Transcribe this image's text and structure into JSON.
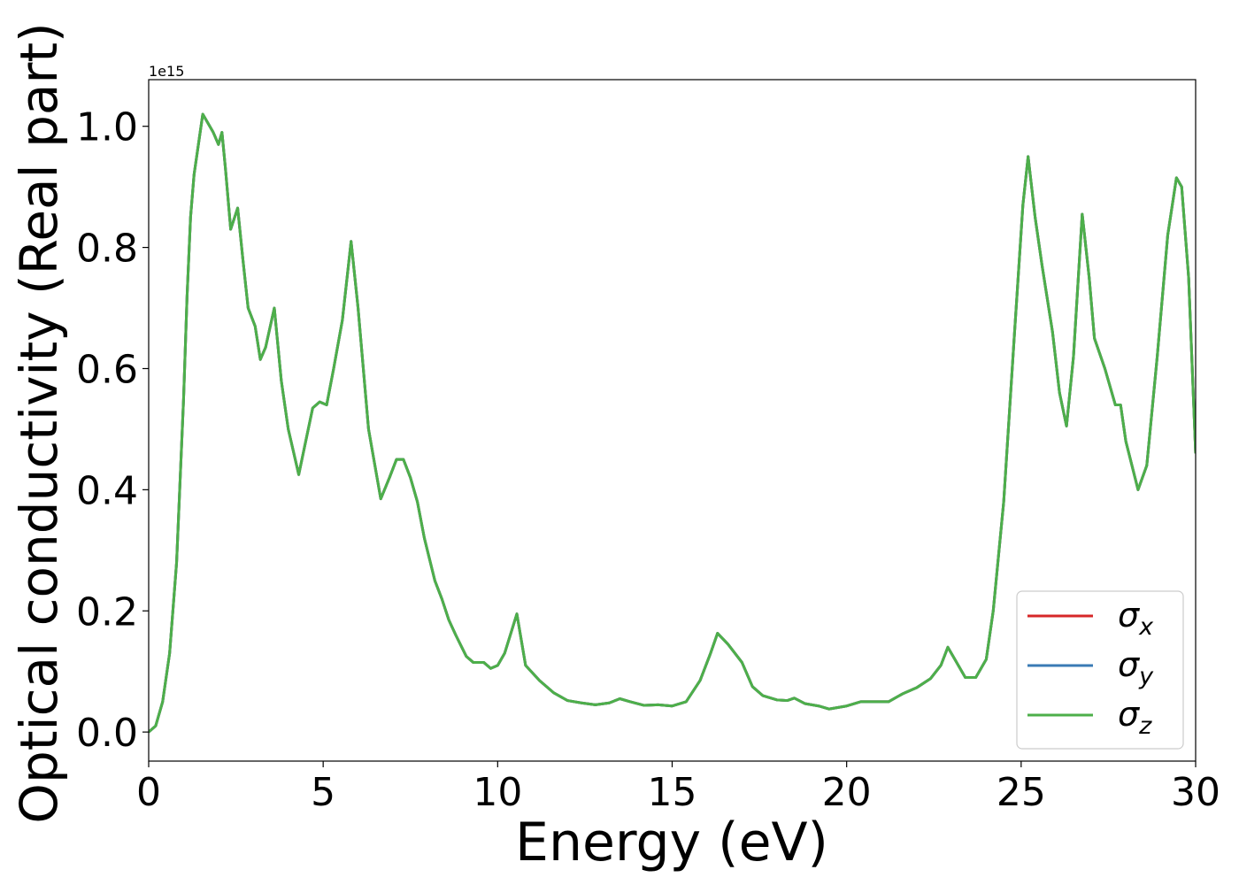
{
  "chart_data": {
    "type": "line",
    "xlabel": "Energy (eV)",
    "ylabel": "Optical conductivity (Real part)",
    "y_offset_label": "1e15",
    "x": [
      0,
      0.2,
      0.4,
      0.6,
      0.8,
      1.0,
      1.1,
      1.2,
      1.3,
      1.45,
      1.55,
      1.7,
      1.85,
      2.0,
      2.1,
      2.2,
      2.35,
      2.55,
      2.7,
      2.85,
      3.05,
      3.2,
      3.35,
      3.6,
      3.8,
      4.0,
      4.3,
      4.5,
      4.7,
      4.9,
      5.1,
      5.3,
      5.55,
      5.8,
      6.0,
      6.3,
      6.65,
      6.9,
      7.1,
      7.3,
      7.5,
      7.7,
      7.9,
      8.2,
      8.4,
      8.6,
      8.8,
      9.1,
      9.3,
      9.6,
      9.8,
      10.0,
      10.2,
      10.55,
      10.8,
      11.2,
      11.6,
      12.0,
      12.4,
      12.8,
      13.2,
      13.5,
      13.8,
      14.2,
      14.6,
      15.0,
      15.4,
      15.8,
      16.1,
      16.3,
      16.6,
      17.0,
      17.3,
      17.6,
      18.0,
      18.3,
      18.5,
      18.8,
      19.2,
      19.5,
      20.0,
      20.4,
      20.8,
      21.2,
      21.6,
      22.0,
      22.4,
      22.7,
      22.9,
      23.1,
      23.4,
      23.7,
      24.0,
      24.2,
      24.5,
      24.8,
      25.05,
      25.2,
      25.4,
      25.6,
      25.9,
      26.1,
      26.3,
      26.5,
      26.75,
      26.95,
      27.1,
      27.4,
      27.7,
      27.85,
      28.0,
      28.35,
      28.6,
      28.9,
      29.2,
      29.45,
      29.6,
      29.8,
      30.0
    ],
    "series": [
      {
        "name": "σx",
        "color": "#d62728",
        "values": [
          0,
          0.01,
          0.05,
          0.13,
          0.28,
          0.55,
          0.72,
          0.85,
          0.92,
          0.98,
          1.02,
          1.005,
          0.99,
          0.97,
          0.99,
          0.93,
          0.83,
          0.865,
          0.78,
          0.7,
          0.67,
          0.615,
          0.635,
          0.7,
          0.58,
          0.5,
          0.425,
          0.48,
          0.535,
          0.545,
          0.54,
          0.6,
          0.68,
          0.81,
          0.7,
          0.5,
          0.385,
          0.42,
          0.45,
          0.45,
          0.42,
          0.38,
          0.32,
          0.25,
          0.22,
          0.185,
          0.16,
          0.125,
          0.115,
          0.115,
          0.105,
          0.11,
          0.13,
          0.195,
          0.11,
          0.085,
          0.065,
          0.052,
          0.048,
          0.045,
          0.048,
          0.055,
          0.05,
          0.044,
          0.045,
          0.043,
          0.05,
          0.085,
          0.13,
          0.163,
          0.145,
          0.115,
          0.075,
          0.06,
          0.053,
          0.052,
          0.056,
          0.047,
          0.043,
          0.038,
          0.043,
          0.05,
          0.05,
          0.05,
          0.063,
          0.073,
          0.088,
          0.11,
          0.14,
          0.12,
          0.09,
          0.09,
          0.12,
          0.2,
          0.38,
          0.65,
          0.87,
          0.95,
          0.85,
          0.77,
          0.66,
          0.56,
          0.505,
          0.62,
          0.855,
          0.75,
          0.65,
          0.6,
          0.54,
          0.54,
          0.48,
          0.4,
          0.44,
          0.62,
          0.82,
          0.915,
          0.9,
          0.75,
          0.46
        ]
      },
      {
        "name": "σy",
        "color": "#3a7bb5",
        "values": [
          0,
          0.01,
          0.05,
          0.13,
          0.28,
          0.55,
          0.72,
          0.85,
          0.92,
          0.98,
          1.02,
          1.005,
          0.99,
          0.97,
          0.99,
          0.93,
          0.83,
          0.865,
          0.78,
          0.7,
          0.67,
          0.615,
          0.635,
          0.7,
          0.58,
          0.5,
          0.425,
          0.48,
          0.535,
          0.545,
          0.54,
          0.6,
          0.68,
          0.81,
          0.7,
          0.5,
          0.385,
          0.42,
          0.45,
          0.45,
          0.42,
          0.38,
          0.32,
          0.25,
          0.22,
          0.185,
          0.16,
          0.125,
          0.115,
          0.115,
          0.105,
          0.11,
          0.13,
          0.195,
          0.11,
          0.085,
          0.065,
          0.052,
          0.048,
          0.045,
          0.048,
          0.055,
          0.05,
          0.044,
          0.045,
          0.043,
          0.05,
          0.085,
          0.13,
          0.163,
          0.145,
          0.115,
          0.075,
          0.06,
          0.053,
          0.052,
          0.056,
          0.047,
          0.043,
          0.038,
          0.043,
          0.05,
          0.05,
          0.05,
          0.063,
          0.073,
          0.088,
          0.11,
          0.14,
          0.12,
          0.09,
          0.09,
          0.12,
          0.2,
          0.38,
          0.65,
          0.87,
          0.95,
          0.85,
          0.77,
          0.66,
          0.56,
          0.505,
          0.62,
          0.855,
          0.75,
          0.65,
          0.6,
          0.54,
          0.54,
          0.48,
          0.4,
          0.44,
          0.62,
          0.82,
          0.915,
          0.9,
          0.75,
          0.46
        ]
      },
      {
        "name": "σz",
        "color": "#4daf4a",
        "values": [
          0,
          0.01,
          0.05,
          0.13,
          0.28,
          0.55,
          0.72,
          0.85,
          0.92,
          0.98,
          1.02,
          1.005,
          0.99,
          0.97,
          0.99,
          0.93,
          0.83,
          0.865,
          0.78,
          0.7,
          0.67,
          0.615,
          0.635,
          0.7,
          0.58,
          0.5,
          0.425,
          0.48,
          0.535,
          0.545,
          0.54,
          0.6,
          0.68,
          0.81,
          0.7,
          0.5,
          0.385,
          0.42,
          0.45,
          0.45,
          0.42,
          0.38,
          0.32,
          0.25,
          0.22,
          0.185,
          0.16,
          0.125,
          0.115,
          0.115,
          0.105,
          0.11,
          0.13,
          0.195,
          0.11,
          0.085,
          0.065,
          0.052,
          0.048,
          0.045,
          0.048,
          0.055,
          0.05,
          0.044,
          0.045,
          0.043,
          0.05,
          0.085,
          0.13,
          0.163,
          0.145,
          0.115,
          0.075,
          0.06,
          0.053,
          0.052,
          0.056,
          0.047,
          0.043,
          0.038,
          0.043,
          0.05,
          0.05,
          0.05,
          0.063,
          0.073,
          0.088,
          0.11,
          0.14,
          0.12,
          0.09,
          0.09,
          0.12,
          0.2,
          0.38,
          0.65,
          0.87,
          0.95,
          0.85,
          0.77,
          0.66,
          0.56,
          0.505,
          0.62,
          0.855,
          0.75,
          0.65,
          0.6,
          0.54,
          0.54,
          0.48,
          0.4,
          0.44,
          0.62,
          0.82,
          0.915,
          0.9,
          0.75,
          0.46
        ]
      }
    ],
    "xlim": [
      0,
      30
    ],
    "xticks": [
      0,
      5,
      10,
      15,
      20,
      25,
      30
    ],
    "ylim": [
      -0.048,
      1.077
    ],
    "yticks": [
      {
        "value": 0,
        "label": "0.0"
      },
      0.2,
      0.4,
      0.6,
      0.8,
      {
        "value": 1,
        "label": "1.0"
      }
    ],
    "legend": "lower right",
    "grid": false
  }
}
